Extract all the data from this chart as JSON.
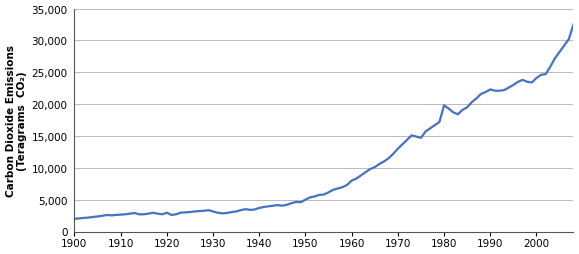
{
  "ylabel_line1": "Carbon Dioxide Emissions",
  "ylabel_line2": "(Teragrams  CO₂)",
  "xlim": [
    1900,
    2008
  ],
  "ylim": [
    0,
    35000
  ],
  "yticks": [
    0,
    5000,
    10000,
    15000,
    20000,
    25000,
    30000,
    35000
  ],
  "xticks": [
    1900,
    1910,
    1920,
    1930,
    1940,
    1950,
    1960,
    1970,
    1980,
    1990,
    2000
  ],
  "line_color": "#4472C4",
  "line_width": 1.6,
  "background_color": "#ffffff",
  "years": [
    1900,
    1901,
    1902,
    1903,
    1904,
    1905,
    1906,
    1907,
    1908,
    1909,
    1910,
    1911,
    1912,
    1913,
    1914,
    1915,
    1916,
    1917,
    1918,
    1919,
    1920,
    1921,
    1922,
    1923,
    1924,
    1925,
    1926,
    1927,
    1928,
    1929,
    1930,
    1931,
    1932,
    1933,
    1934,
    1935,
    1936,
    1937,
    1938,
    1939,
    1940,
    1941,
    1942,
    1943,
    1944,
    1945,
    1946,
    1947,
    1948,
    1949,
    1950,
    1951,
    1952,
    1953,
    1954,
    1955,
    1956,
    1957,
    1958,
    1959,
    1960,
    1961,
    1962,
    1963,
    1964,
    1965,
    1966,
    1967,
    1968,
    1969,
    1970,
    1971,
    1972,
    1973,
    1974,
    1975,
    1976,
    1977,
    1978,
    1979,
    1980,
    1981,
    1982,
    1983,
    1984,
    1985,
    1986,
    1987,
    1988,
    1989,
    1990,
    1991,
    1992,
    1993,
    1994,
    1995,
    1996,
    1997,
    1998,
    1999,
    2000,
    2001,
    2002,
    2003,
    2004,
    2005,
    2006,
    2007,
    2008
  ],
  "values": [
    2000,
    2050,
    2130,
    2180,
    2280,
    2360,
    2460,
    2600,
    2530,
    2600,
    2650,
    2700,
    2800,
    2900,
    2700,
    2700,
    2800,
    2950,
    2800,
    2700,
    2950,
    2600,
    2700,
    2950,
    3000,
    3050,
    3150,
    3200,
    3250,
    3350,
    3150,
    2950,
    2850,
    2900,
    3050,
    3150,
    3350,
    3500,
    3400,
    3450,
    3700,
    3850,
    3950,
    4050,
    4150,
    4050,
    4200,
    4450,
    4650,
    4600,
    5000,
    5350,
    5500,
    5750,
    5800,
    6150,
    6550,
    6750,
    6950,
    7300,
    8000,
    8300,
    8800,
    9300,
    9800,
    10100,
    10600,
    11000,
    11500,
    12200,
    13000,
    13700,
    14400,
    15100,
    14900,
    14700,
    15700,
    16200,
    16700,
    17200,
    19800,
    19300,
    18700,
    18400,
    19100,
    19500,
    20300,
    20900,
    21600,
    21900,
    22300,
    22100,
    22100,
    22200,
    22600,
    23000,
    23500,
    23800,
    23500,
    23400,
    24100,
    24600,
    24700,
    25900,
    27200,
    28200,
    29200,
    30200,
    32500
  ]
}
